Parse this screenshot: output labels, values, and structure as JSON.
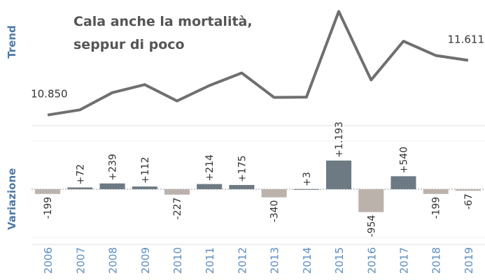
{
  "chart_data": [
    {
      "type": "line",
      "axis_label": "Trend",
      "annotation": [
        "Cala anche la mortalità,",
        "seppur di poco"
      ],
      "categories": [
        "2006",
        "2007",
        "2008",
        "2009",
        "2010",
        "2011",
        "2012",
        "2013",
        "2014",
        "2015",
        "2016",
        "2017",
        "2018",
        "2019"
      ],
      "values": [
        10850,
        10922,
        11161,
        11273,
        11046,
        11260,
        11435,
        11095,
        11098,
        12291,
        11337,
        11877,
        11678,
        11611
      ],
      "value_labels": [
        "10.850",
        null,
        null,
        null,
        null,
        null,
        null,
        null,
        null,
        null,
        null,
        null,
        null,
        "11.611"
      ],
      "color": "#6f6f6f",
      "ylim": [
        10750,
        12450
      ]
    },
    {
      "type": "bar",
      "axis_label": "Variazione",
      "categories": [
        "2006",
        "2007",
        "2008",
        "2009",
        "2010",
        "2011",
        "2012",
        "2013",
        "2014",
        "2015",
        "2016",
        "2017",
        "2018",
        "2019"
      ],
      "values": [
        -199,
        72,
        239,
        112,
        -227,
        214,
        175,
        -340,
        3,
        1193,
        -954,
        540,
        -199,
        -67
      ],
      "value_labels": [
        "-199",
        "+72",
        "+239",
        "+112",
        "-227",
        "+214",
        "+175",
        "-340",
        "+3",
        "+1.193",
        "-954",
        "+540",
        "-199",
        "-67"
      ],
      "color_positive": "#6d7a83",
      "color_negative": "#bcb2ac",
      "ylim": [
        -2300,
        2500
      ]
    }
  ]
}
